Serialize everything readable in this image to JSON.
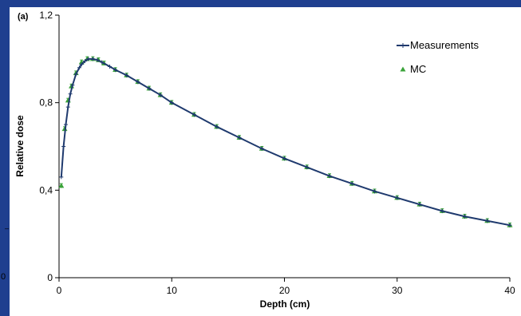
{
  "panel_label": "(a)",
  "edge_marks": {
    "zero": "0",
    "dash": "–"
  },
  "chart_data": {
    "type": "line",
    "title": "",
    "xlabel": "Depth (cm)",
    "ylabel": "Relative dose",
    "xlim": [
      0,
      40
    ],
    "ylim": [
      0,
      1.2
    ],
    "x_ticks": [
      0,
      10,
      20,
      30,
      40
    ],
    "x_tick_labels": [
      "0",
      "10",
      "20",
      "30",
      "40"
    ],
    "y_ticks": [
      0,
      0.4,
      0.8,
      1.2
    ],
    "y_tick_labels": [
      "0",
      "0,4",
      "0,8",
      "1,2"
    ],
    "grid": false,
    "legend_position": "top-right",
    "series": [
      {
        "name": "Measurements",
        "style": "line-with-plus-markers",
        "color": "#1f3a6e",
        "x": [
          0.2,
          0.4,
          0.6,
          0.8,
          1.0,
          1.2,
          1.5,
          1.8,
          2.0,
          2.3,
          2.6,
          3.0,
          3.4,
          3.8,
          4.5,
          5,
          6,
          7,
          8,
          9,
          10,
          12,
          14,
          16,
          18,
          20,
          22,
          24,
          26,
          28,
          30,
          32,
          34,
          36,
          38,
          40
        ],
        "y": [
          0.46,
          0.6,
          0.7,
          0.78,
          0.84,
          0.88,
          0.93,
          0.96,
          0.975,
          0.99,
          1.0,
          1.0,
          0.995,
          0.985,
          0.965,
          0.95,
          0.925,
          0.895,
          0.865,
          0.835,
          0.8,
          0.745,
          0.69,
          0.64,
          0.59,
          0.545,
          0.505,
          0.465,
          0.43,
          0.395,
          0.365,
          0.335,
          0.305,
          0.28,
          0.26,
          0.24
        ]
      },
      {
        "name": "MC",
        "style": "triangle-markers-with-error-bars",
        "color": "#3aa339",
        "x": [
          0.2,
          0.5,
          0.8,
          1.1,
          1.5,
          2.0,
          2.5,
          3.0,
          3.5,
          4.0,
          5,
          6,
          7,
          8,
          9,
          10,
          12,
          14,
          16,
          18,
          20,
          22,
          24,
          26,
          28,
          30,
          32,
          34,
          36,
          38,
          40
        ],
        "y": [
          0.42,
          0.68,
          0.81,
          0.875,
          0.935,
          0.985,
          1.0,
          1.0,
          0.995,
          0.98,
          0.95,
          0.925,
          0.895,
          0.865,
          0.835,
          0.8,
          0.745,
          0.69,
          0.64,
          0.59,
          0.545,
          0.505,
          0.465,
          0.43,
          0.395,
          0.365,
          0.335,
          0.305,
          0.28,
          0.26,
          0.24
        ],
        "error": 0.01
      }
    ]
  }
}
